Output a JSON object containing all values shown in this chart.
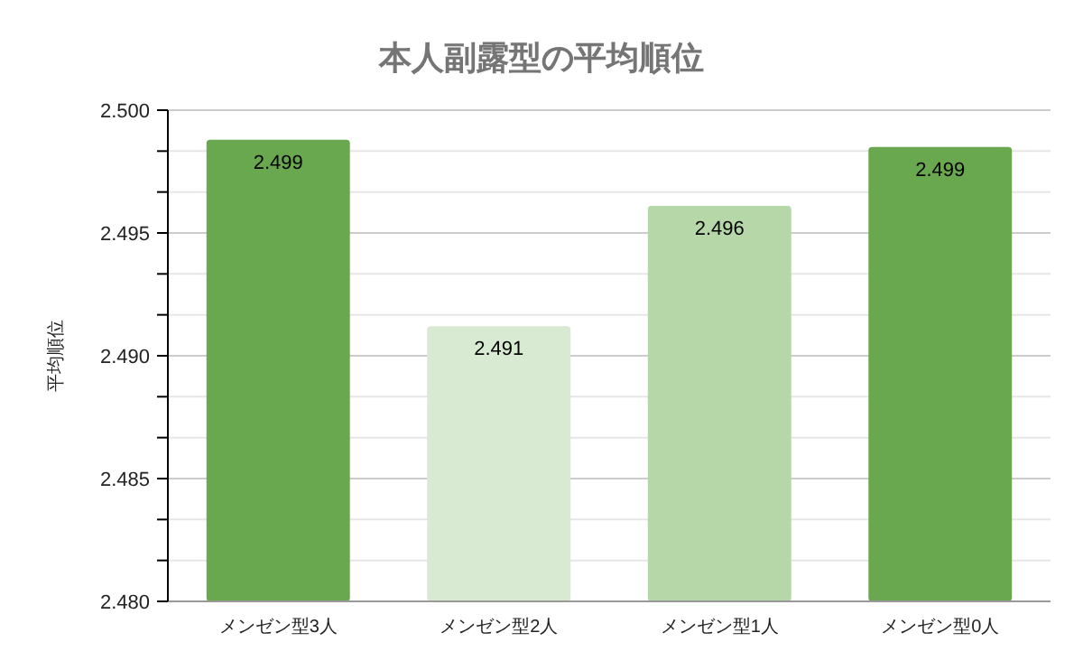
{
  "chart_data": {
    "type": "bar",
    "title": "本人副露型の平均順位",
    "ylabel": "平均順位",
    "categories": [
      "メンゼン型3人",
      "メンゼン型2人",
      "メンゼン型1人",
      "メンゼン型0人"
    ],
    "values": [
      2.4988,
      2.4912,
      2.4961,
      2.4985
    ],
    "value_labels": [
      "2.499",
      "2.491",
      "2.496",
      "2.499"
    ],
    "colors": [
      "#6aa84f",
      "#d9ead3",
      "#b6d7a8",
      "#6aa84f"
    ],
    "ylim": [
      2.48,
      2.5
    ],
    "yticks": [
      {
        "value": 2.48,
        "label": "2.480"
      },
      {
        "value": 2.481667,
        "label": null
      },
      {
        "value": 2.483333,
        "label": null
      },
      {
        "value": 2.485,
        "label": "2.485"
      },
      {
        "value": 2.486667,
        "label": null
      },
      {
        "value": 2.488333,
        "label": null
      },
      {
        "value": 2.49,
        "label": "2.490"
      },
      {
        "value": 2.491667,
        "label": null
      },
      {
        "value": 2.493333,
        "label": null
      },
      {
        "value": 2.495,
        "label": "2.495"
      },
      {
        "value": 2.496667,
        "label": null
      },
      {
        "value": 2.498333,
        "label": null
      },
      {
        "value": 2.5,
        "label": "2.500"
      }
    ],
    "grid": true
  }
}
